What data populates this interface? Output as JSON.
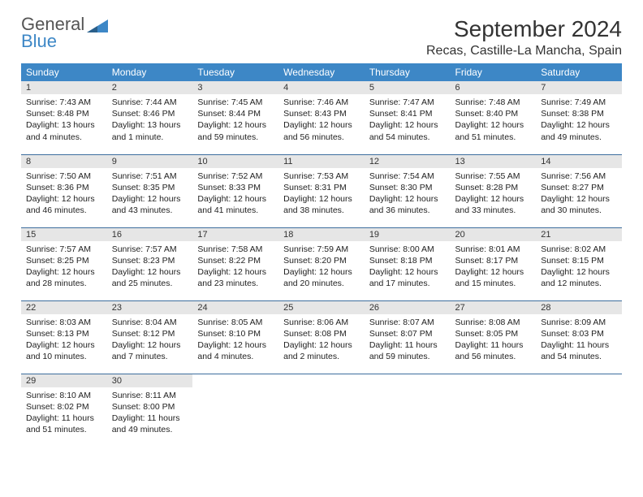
{
  "logo": {
    "text_top": "General",
    "text_bottom": "Blue",
    "accent_color": "#3d87c6"
  },
  "title": "September 2024",
  "location": "Recas, Castille-La Mancha, Spain",
  "colors": {
    "header_bg": "#3d87c6",
    "header_fg": "#ffffff",
    "daynum_bg": "#e6e6e6",
    "row_border": "#3d6e9e",
    "text": "#333333"
  },
  "weekdays": [
    "Sunday",
    "Monday",
    "Tuesday",
    "Wednesday",
    "Thursday",
    "Friday",
    "Saturday"
  ],
  "days": [
    {
      "n": 1,
      "sunrise": "7:43 AM",
      "sunset": "8:48 PM",
      "daylight": "13 hours and 4 minutes."
    },
    {
      "n": 2,
      "sunrise": "7:44 AM",
      "sunset": "8:46 PM",
      "daylight": "13 hours and 1 minute."
    },
    {
      "n": 3,
      "sunrise": "7:45 AM",
      "sunset": "8:44 PM",
      "daylight": "12 hours and 59 minutes."
    },
    {
      "n": 4,
      "sunrise": "7:46 AM",
      "sunset": "8:43 PM",
      "daylight": "12 hours and 56 minutes."
    },
    {
      "n": 5,
      "sunrise": "7:47 AM",
      "sunset": "8:41 PM",
      "daylight": "12 hours and 54 minutes."
    },
    {
      "n": 6,
      "sunrise": "7:48 AM",
      "sunset": "8:40 PM",
      "daylight": "12 hours and 51 minutes."
    },
    {
      "n": 7,
      "sunrise": "7:49 AM",
      "sunset": "8:38 PM",
      "daylight": "12 hours and 49 minutes."
    },
    {
      "n": 8,
      "sunrise": "7:50 AM",
      "sunset": "8:36 PM",
      "daylight": "12 hours and 46 minutes."
    },
    {
      "n": 9,
      "sunrise": "7:51 AM",
      "sunset": "8:35 PM",
      "daylight": "12 hours and 43 minutes."
    },
    {
      "n": 10,
      "sunrise": "7:52 AM",
      "sunset": "8:33 PM",
      "daylight": "12 hours and 41 minutes."
    },
    {
      "n": 11,
      "sunrise": "7:53 AM",
      "sunset": "8:31 PM",
      "daylight": "12 hours and 38 minutes."
    },
    {
      "n": 12,
      "sunrise": "7:54 AM",
      "sunset": "8:30 PM",
      "daylight": "12 hours and 36 minutes."
    },
    {
      "n": 13,
      "sunrise": "7:55 AM",
      "sunset": "8:28 PM",
      "daylight": "12 hours and 33 minutes."
    },
    {
      "n": 14,
      "sunrise": "7:56 AM",
      "sunset": "8:27 PM",
      "daylight": "12 hours and 30 minutes."
    },
    {
      "n": 15,
      "sunrise": "7:57 AM",
      "sunset": "8:25 PM",
      "daylight": "12 hours and 28 minutes."
    },
    {
      "n": 16,
      "sunrise": "7:57 AM",
      "sunset": "8:23 PM",
      "daylight": "12 hours and 25 minutes."
    },
    {
      "n": 17,
      "sunrise": "7:58 AM",
      "sunset": "8:22 PM",
      "daylight": "12 hours and 23 minutes."
    },
    {
      "n": 18,
      "sunrise": "7:59 AM",
      "sunset": "8:20 PM",
      "daylight": "12 hours and 20 minutes."
    },
    {
      "n": 19,
      "sunrise": "8:00 AM",
      "sunset": "8:18 PM",
      "daylight": "12 hours and 17 minutes."
    },
    {
      "n": 20,
      "sunrise": "8:01 AM",
      "sunset": "8:17 PM",
      "daylight": "12 hours and 15 minutes."
    },
    {
      "n": 21,
      "sunrise": "8:02 AM",
      "sunset": "8:15 PM",
      "daylight": "12 hours and 12 minutes."
    },
    {
      "n": 22,
      "sunrise": "8:03 AM",
      "sunset": "8:13 PM",
      "daylight": "12 hours and 10 minutes."
    },
    {
      "n": 23,
      "sunrise": "8:04 AM",
      "sunset": "8:12 PM",
      "daylight": "12 hours and 7 minutes."
    },
    {
      "n": 24,
      "sunrise": "8:05 AM",
      "sunset": "8:10 PM",
      "daylight": "12 hours and 4 minutes."
    },
    {
      "n": 25,
      "sunrise": "8:06 AM",
      "sunset": "8:08 PM",
      "daylight": "12 hours and 2 minutes."
    },
    {
      "n": 26,
      "sunrise": "8:07 AM",
      "sunset": "8:07 PM",
      "daylight": "11 hours and 59 minutes."
    },
    {
      "n": 27,
      "sunrise": "8:08 AM",
      "sunset": "8:05 PM",
      "daylight": "11 hours and 56 minutes."
    },
    {
      "n": 28,
      "sunrise": "8:09 AM",
      "sunset": "8:03 PM",
      "daylight": "11 hours and 54 minutes."
    },
    {
      "n": 29,
      "sunrise": "8:10 AM",
      "sunset": "8:02 PM",
      "daylight": "11 hours and 51 minutes."
    },
    {
      "n": 30,
      "sunrise": "8:11 AM",
      "sunset": "8:00 PM",
      "daylight": "11 hours and 49 minutes."
    }
  ],
  "labels": {
    "sunrise": "Sunrise:",
    "sunset": "Sunset:",
    "daylight": "Daylight:"
  }
}
